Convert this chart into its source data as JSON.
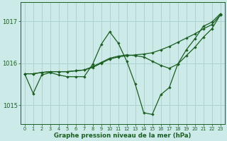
{
  "xlabel": "Graphe pression niveau de la mer (hPa)",
  "bg_color": "#cceae8",
  "grid_color": "#aad4d0",
  "line_color": "#1a5e20",
  "ylim": [
    1014.55,
    1017.45
  ],
  "yticks": [
    1015,
    1016,
    1017
  ],
  "x_ticks": [
    0,
    1,
    2,
    3,
    4,
    5,
    6,
    7,
    8,
    9,
    10,
    11,
    12,
    13,
    14,
    15,
    16,
    17,
    18,
    19,
    20,
    21,
    22,
    23
  ],
  "series1": [
    1015.75,
    1015.28,
    1015.72,
    1015.78,
    1015.72,
    1015.68,
    1015.68,
    1015.68,
    1015.98,
    1016.45,
    1016.75,
    1016.48,
    1016.05,
    1015.5,
    1014.82,
    1014.78,
    1015.25,
    1015.42,
    1015.98,
    1016.32,
    1016.58,
    1016.88,
    1016.98,
    1017.18
  ],
  "series2": [
    1015.75,
    1015.75,
    1015.78,
    1015.8,
    1015.8,
    1015.8,
    1015.82,
    1015.84,
    1015.9,
    1016.0,
    1016.1,
    1016.15,
    1016.18,
    1016.2,
    1016.22,
    1016.25,
    1016.32,
    1016.4,
    1016.5,
    1016.6,
    1016.7,
    1016.82,
    1016.92,
    1017.15
  ],
  "series3": [
    1015.75,
    1015.75,
    1015.78,
    1015.8,
    1015.8,
    1015.8,
    1015.82,
    1015.84,
    1015.92,
    1016.02,
    1016.12,
    1016.17,
    1016.2,
    1016.18,
    1016.15,
    1016.05,
    1015.95,
    1015.88,
    1015.98,
    1016.18,
    1016.38,
    1016.62,
    1016.82,
    1017.15
  ]
}
